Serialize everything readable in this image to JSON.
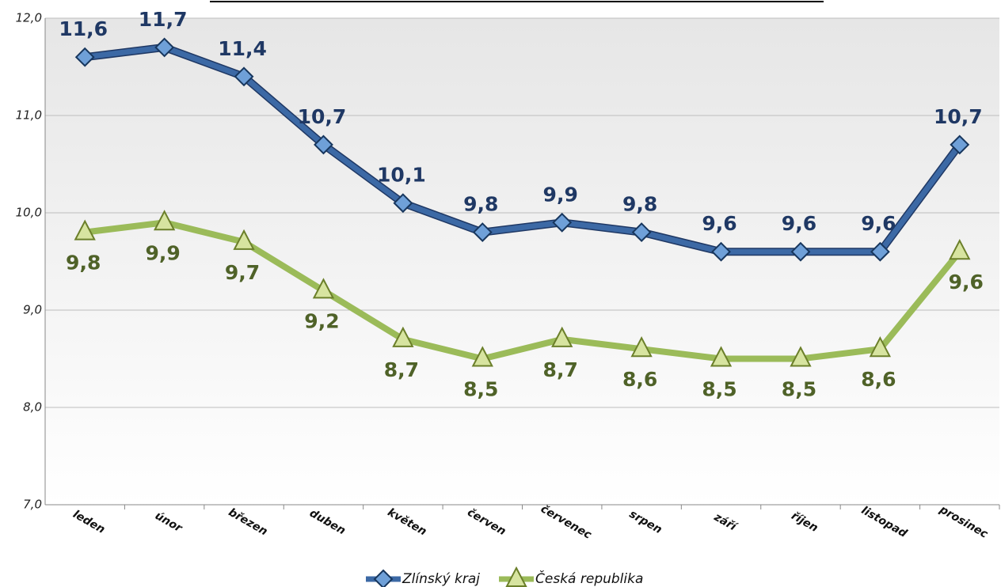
{
  "chart_data": {
    "type": "line",
    "categories": [
      "leden",
      "únor",
      "březen",
      "duben",
      "květen",
      "červen",
      "červenec",
      "srpen",
      "září",
      "říjen",
      "listopad",
      "prosinec"
    ],
    "series": [
      {
        "name": "Zlínský kraj",
        "color": "#3c69a5",
        "label_color": "#1f3864",
        "values": [
          11.6,
          11.7,
          11.4,
          10.7,
          10.1,
          9.8,
          9.9,
          9.8,
          9.6,
          9.6,
          9.6,
          10.7
        ],
        "value_labels": [
          "11,6",
          "11,7",
          "11,4",
          "10,7",
          "10,1",
          "9,8",
          "9,9",
          "9,8",
          "9,6",
          "9,6",
          "9,6",
          "10,7"
        ]
      },
      {
        "name": "Česká republika",
        "color": "#9bbb59",
        "label_color": "#4f6228",
        "values": [
          9.8,
          9.9,
          9.7,
          9.2,
          8.7,
          8.5,
          8.7,
          8.6,
          8.5,
          8.5,
          8.6,
          9.6
        ],
        "value_labels": [
          "9,8",
          "9,9",
          "9,7",
          "9,2",
          "8,7",
          "8,5",
          "8,7",
          "8,6",
          "8,5",
          "8,5",
          "8,6",
          "9,6"
        ]
      }
    ],
    "ylim": [
      7,
      12
    ],
    "yticks": [
      {
        "value": 7,
        "label": "7,0"
      },
      {
        "value": 8,
        "label": "8,0"
      },
      {
        "value": 9,
        "label": "9,0"
      },
      {
        "value": 10,
        "label": "10,0"
      },
      {
        "value": 11,
        "label": "11,0"
      },
      {
        "value": 12,
        "label": "12,0"
      }
    ],
    "grid": true,
    "legend": "bottom"
  }
}
